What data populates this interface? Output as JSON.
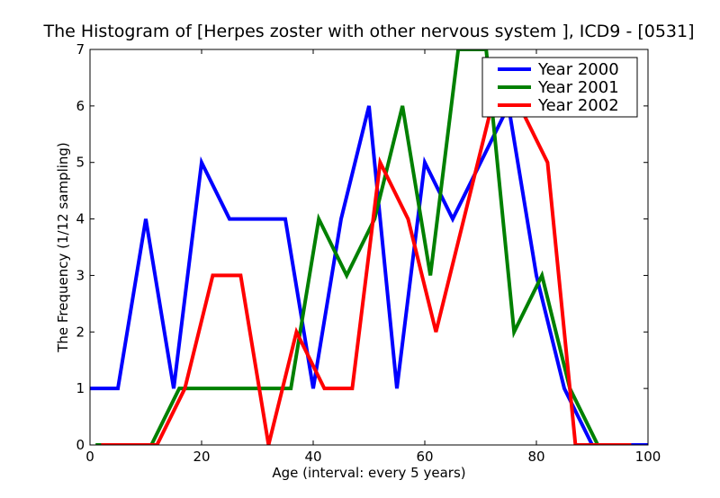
{
  "chart_data": {
    "type": "line",
    "title": "The Histogram of [Herpes zoster with other nervous system ], ICD9 - [0531]",
    "xlabel": "Age (interval: every 5 years)",
    "ylabel": "The Frequency (1/12 sampling)",
    "xlim": [
      0,
      100
    ],
    "ylim": [
      0,
      7
    ],
    "xticks": [
      "0",
      "20",
      "40",
      "60",
      "80",
      "100"
    ],
    "yticks": [
      "0",
      "1",
      "2",
      "3",
      "4",
      "5",
      "6",
      "7"
    ],
    "grid": false,
    "legend_position": "top-right",
    "series": [
      {
        "name": "Year 2000",
        "color": "#0000ff",
        "x": [
          0,
          5,
          10,
          15,
          20,
          25,
          30,
          35,
          40,
          45,
          50,
          55,
          60,
          65,
          70,
          75,
          80,
          85,
          90,
          95,
          100
        ],
        "y": [
          1,
          1,
          4,
          1,
          5,
          4,
          4,
          4,
          1,
          4,
          6,
          1,
          5,
          4,
          5,
          6,
          3,
          1,
          0,
          0,
          0
        ]
      },
      {
        "name": "Year 2001",
        "color": "#008000",
        "x": [
          1,
          6,
          11,
          16,
          21,
          26,
          31,
          36,
          41,
          46,
          51,
          56,
          61,
          66,
          71,
          76,
          81,
          86,
          91,
          96
        ],
        "y": [
          0,
          0,
          0,
          1,
          1,
          1,
          1,
          1,
          4,
          3,
          4,
          6,
          3,
          7,
          7,
          2,
          3,
          1,
          0,
          0
        ]
      },
      {
        "name": "Year 2002",
        "color": "#ff0000",
        "x": [
          2,
          7,
          12,
          17,
          22,
          27,
          32,
          37,
          42,
          47,
          52,
          57,
          62,
          67,
          72,
          77,
          82,
          87,
          92,
          97
        ],
        "y": [
          0,
          0,
          0,
          1,
          3,
          3,
          0,
          2,
          1,
          1,
          5,
          4,
          2,
          4,
          6,
          6,
          5,
          0,
          0,
          0
        ]
      }
    ]
  }
}
